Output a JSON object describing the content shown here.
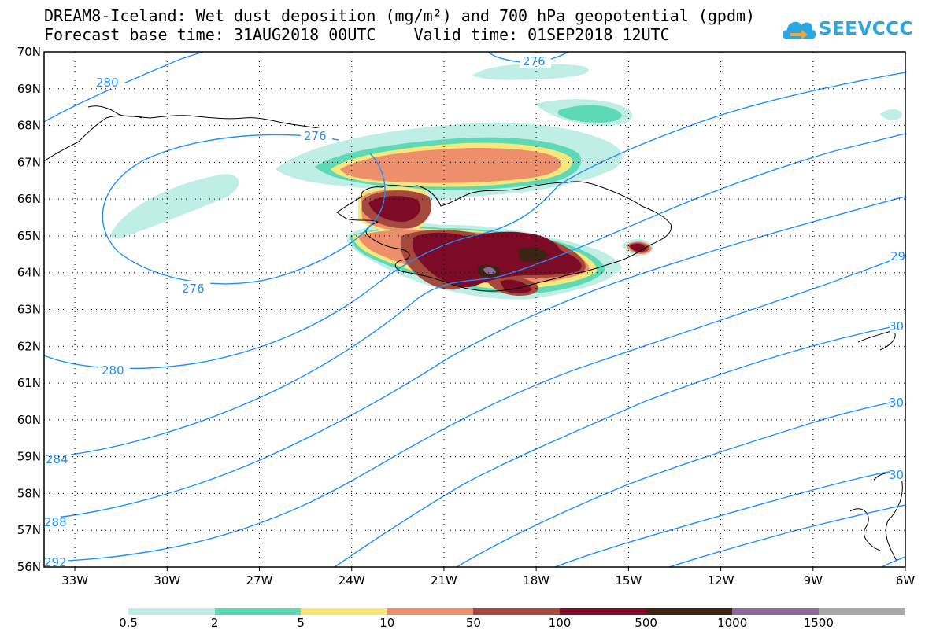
{
  "title": {
    "line1": "DREAM8-Iceland: Wet dust deposition (mg/m²) and 700 hPa geopotential (gpdm)",
    "line2": "Forecast base time: 31AUG2018 00UTC    Valid time: 01SEP2018 12UTC"
  },
  "logo": {
    "text": "SEEVCCC"
  },
  "map": {
    "lon_range": [
      -34,
      -6
    ],
    "lat_range": [
      56,
      70
    ],
    "lat_labels": [
      "56N",
      "57N",
      "58N",
      "59N",
      "60N",
      "61N",
      "62N",
      "63N",
      "64N",
      "65N",
      "66N",
      "67N",
      "68N",
      "69N",
      "70N"
    ],
    "lon_labels": [
      "33W",
      "30W",
      "27W",
      "24W",
      "21W",
      "18W",
      "15W",
      "12W",
      "9W",
      "6W"
    ],
    "contour_labels": [
      "276",
      "280",
      "276",
      "276",
      "280",
      "284",
      "288",
      "292",
      "29",
      "30",
      "30",
      "30"
    ],
    "contour_color": "#1e90ff"
  },
  "colorbar": {
    "labels": [
      "0.5",
      "2",
      "5",
      "10",
      "50",
      "100",
      "500",
      "1000",
      "1500"
    ],
    "colors": [
      "#bfeee6",
      "#5ed9b6",
      "#f6e87a",
      "#ee8f6c",
      "#a5493c",
      "#7d0a26",
      "#3b2413",
      "#8a6b9c",
      "#a8a8a8"
    ]
  }
}
